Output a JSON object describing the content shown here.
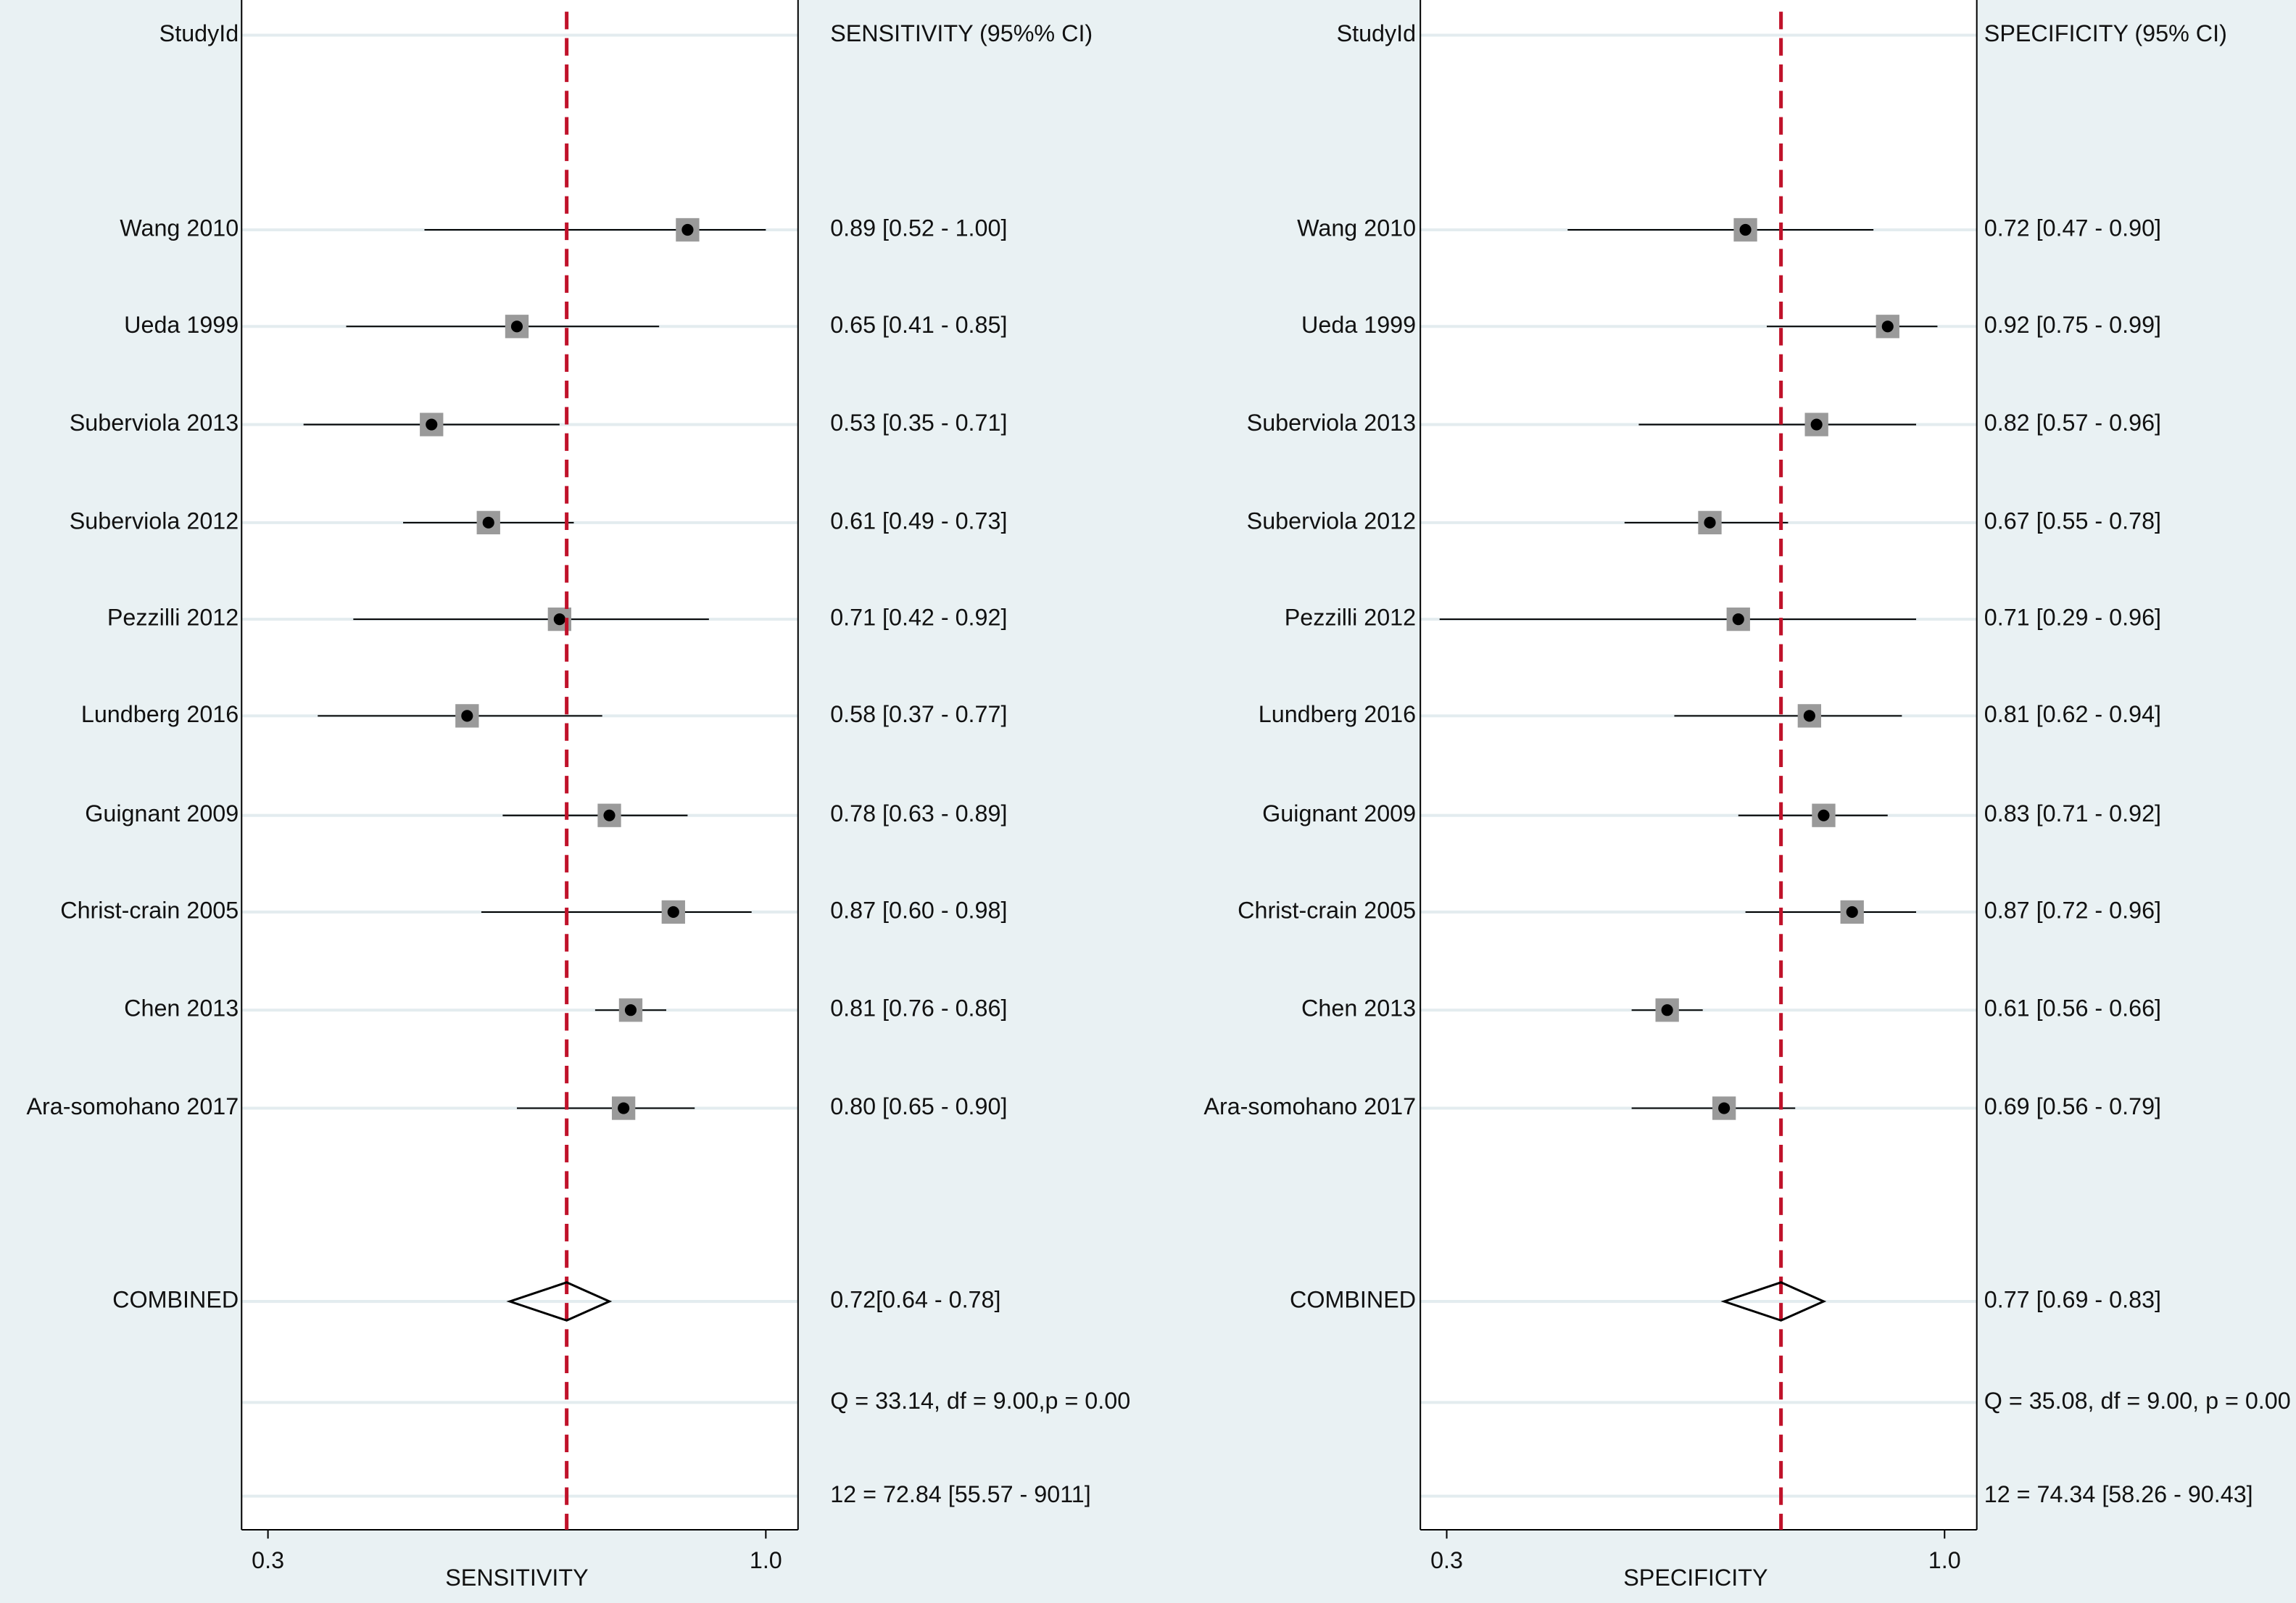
{
  "chart_data": [
    {
      "type": "forest",
      "row_header": "StudyId",
      "column_header": "SENSITIVITY (95%% CI)",
      "x_label": "SENSITIVITY",
      "categories": [
        "Wang 2010",
        "Ueda 1999",
        "Suberviola 2013",
        "Suberviola 2012",
        "Pezzilli 2012",
        "Lundberg 2016",
        "Guignant 2009",
        "Christ-crain 2005",
        "Chen 2013",
        "Ara-somohano 2017"
      ],
      "values": [
        0.89,
        0.65,
        0.53,
        0.61,
        0.71,
        0.58,
        0.78,
        0.87,
        0.81,
        0.8
      ],
      "ci_low": [
        0.52,
        0.41,
        0.35,
        0.49,
        0.42,
        0.37,
        0.63,
        0.6,
        0.76,
        0.65
      ],
      "ci_high": [
        1.0,
        0.85,
        0.71,
        0.73,
        0.92,
        0.77,
        0.89,
        0.98,
        0.86,
        0.9
      ],
      "value_labels": [
        "0.89 [0.52 - 1.00]",
        "0.65 [0.41 - 0.85]",
        "0.53 [0.35 - 0.71]",
        "0.61 [0.49 - 0.73]",
        "0.71 [0.42 - 0.92]",
        "0.58 [0.37 - 0.77]",
        "0.78 [0.63 - 0.89]",
        "0.87 [0.60 - 0.98]",
        "0.81 [0.76 - 0.86]",
        "0.80 [0.65 - 0.90]"
      ],
      "combined": {
        "label": "COMBINED",
        "value": 0.72,
        "ci_low": 0.64,
        "ci_high": 0.78,
        "value_label": "0.72[0.64 - 0.78]"
      },
      "stats": [
        "Q = 33.14, df = 9.00,p = 0.00",
        "12 = 72.84 [55.57 - 9011]"
      ],
      "xlim": [
        0.26,
        1.04
      ],
      "xticks": [
        0.3,
        {
          "value": 1,
          "label": "1.0"
        }
      ],
      "marker_color": "#9a9a9a",
      "reference_color": "#c0122a"
    },
    {
      "type": "forest",
      "row_header": "StudyId",
      "column_header": "SPECIFICITY (95% CI)",
      "x_label": "SPECIFICITY",
      "categories": [
        "Wang 2010",
        "Ueda 1999",
        "Suberviola 2013",
        "Suberviola 2012",
        "Pezzilli 2012",
        "Lundberg 2016",
        "Guignant 2009",
        "Christ-crain 2005",
        "Chen 2013",
        "Ara-somohano 2017"
      ],
      "values": [
        0.72,
        0.92,
        0.82,
        0.67,
        0.71,
        0.81,
        0.83,
        0.87,
        0.61,
        0.69
      ],
      "ci_low": [
        0.47,
        0.75,
        0.57,
        0.55,
        0.29,
        0.62,
        0.71,
        0.72,
        0.56,
        0.56
      ],
      "ci_high": [
        0.9,
        0.99,
        0.96,
        0.78,
        0.96,
        0.94,
        0.92,
        0.96,
        0.66,
        0.79
      ],
      "value_labels": [
        "0.72 [0.47 - 0.90]",
        "0.92 [0.75 - 0.99]",
        "0.82 [0.57 - 0.96]",
        "0.67 [0.55 - 0.78]",
        "0.71 [0.29 - 0.96]",
        "0.81 [0.62 - 0.94]",
        "0.83 [0.71 - 0.92]",
        "0.87 [0.72 - 0.96]",
        "0.61 [0.56 - 0.66]",
        "0.69 [0.56 - 0.79]"
      ],
      "combined": {
        "label": "COMBINED",
        "value": 0.77,
        "ci_low": 0.69,
        "ci_high": 0.83,
        "value_label": "0.77 [0.69 - 0.83]"
      },
      "stats": [
        "Q = 35.08, df = 9.00, p = 0.00",
        "12 = 74.34 [58.26 - 90.43]"
      ],
      "xlim": [
        0.26,
        1.04
      ],
      "xticks": [
        0.3,
        {
          "value": 1,
          "label": "1.0"
        }
      ],
      "marker_color": "#9a9a9a",
      "reference_color": "#c0122a"
    }
  ]
}
